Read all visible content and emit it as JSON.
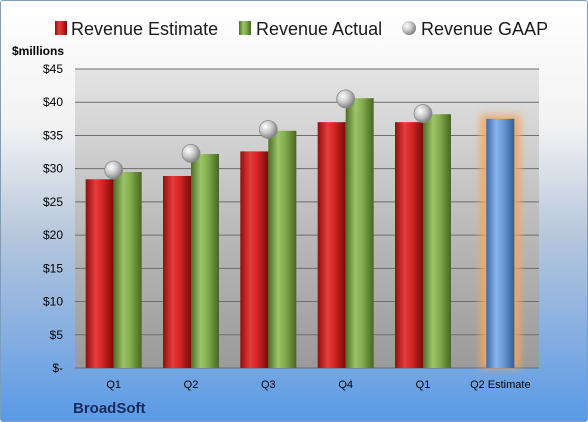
{
  "company": "BroadSoft",
  "chart_data": {
    "type": "bar",
    "ylabel": "$millions",
    "xlabel": "",
    "ylim": [
      0,
      45
    ],
    "yticks": [
      "$-",
      "$5",
      "$10",
      "$15",
      "$20",
      "$25",
      "$30",
      "$35",
      "$40",
      "$45"
    ],
    "ytick_values": [
      0,
      5,
      10,
      15,
      20,
      25,
      30,
      35,
      40,
      45
    ],
    "categories": [
      "Q1",
      "Q2",
      "Q3",
      "Q4",
      "Q1",
      "Q2 Estimate"
    ],
    "grid": true,
    "legend_position": "top",
    "series": [
      {
        "name": "Revenue Estimate",
        "type": "bar",
        "color": "#c81e1e",
        "values": [
          28.4,
          28.9,
          32.6,
          37.0,
          37.0,
          37.5
        ]
      },
      {
        "name": "Revenue Actual",
        "type": "bar",
        "color": "#7ea84a",
        "values": [
          29.5,
          32.2,
          35.7,
          40.6,
          38.2,
          null
        ]
      },
      {
        "name": "Revenue GAAP",
        "type": "marker",
        "color": "#b8b8b8",
        "values": [
          29.8,
          32.3,
          35.9,
          40.5,
          38.3,
          null
        ]
      }
    ],
    "highlight": {
      "category_index": 5,
      "color": "#5a8fd6",
      "glow": "#f0a860"
    }
  }
}
